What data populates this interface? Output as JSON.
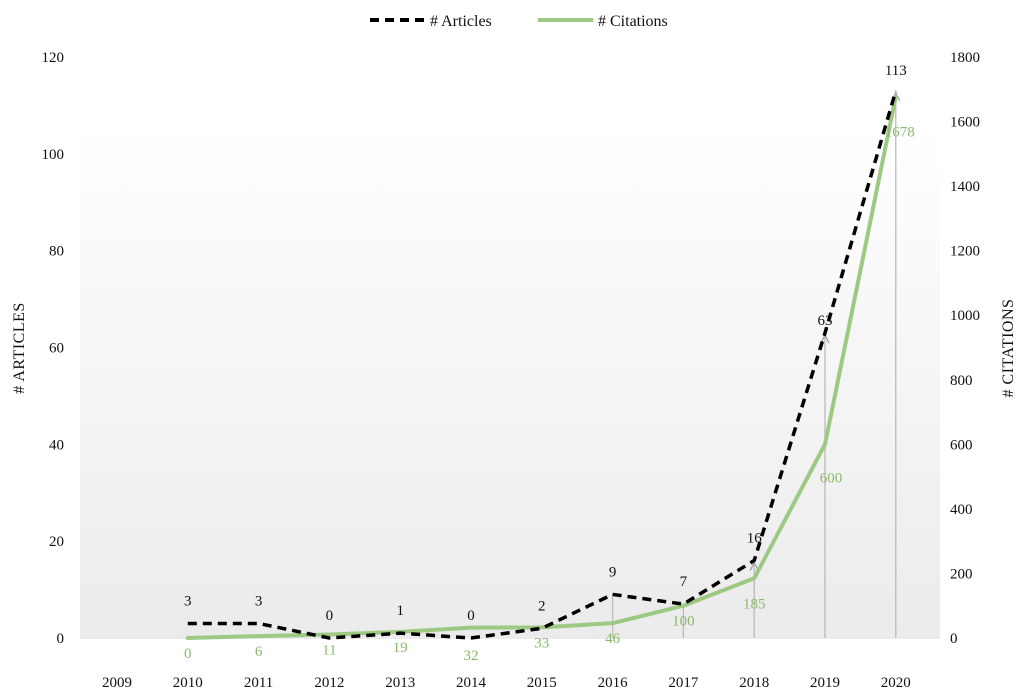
{
  "chart_data": {
    "type": "line",
    "x": [
      "2009",
      "2010",
      "2011",
      "2012",
      "2013",
      "2014",
      "2015",
      "2016",
      "2017",
      "2018",
      "2019",
      "2020"
    ],
    "series": [
      {
        "name": "# Articles",
        "axis": "left",
        "style": "dashed",
        "color": "#000000",
        "values": [
          null,
          3,
          3,
          0,
          1,
          0,
          2,
          9,
          7,
          16,
          63,
          113
        ],
        "labels": [
          "",
          "3",
          "3",
          "0",
          "1",
          "0",
          "2",
          "9",
          "7",
          "16",
          "63",
          "113"
        ]
      },
      {
        "name": "# Citations",
        "axis": "right",
        "style": "solid",
        "color": "#9dc983",
        "values": [
          null,
          0,
          6,
          11,
          19,
          32,
          33,
          46,
          100,
          185,
          600,
          1678
        ],
        "labels": [
          "",
          "0",
          "6",
          "11",
          "19",
          "32",
          "33",
          "46",
          "100",
          "185",
          "600",
          "1678"
        ]
      }
    ],
    "ylabel_left": "# ARTICLES",
    "ylabel_right": "# CITATIONS",
    "ylim_left": [
      0,
      120
    ],
    "ylim_right": [
      0,
      1800
    ],
    "yticks_left": [
      "0",
      "20",
      "40",
      "60",
      "80",
      "100",
      "120"
    ],
    "yticks_right": [
      "0",
      "200",
      "400",
      "600",
      "800",
      "1000",
      "1200",
      "1400",
      "1600",
      "1800"
    ],
    "legend_position": "top-center",
    "grid": false,
    "label_color_citations": "#8bb86c"
  }
}
